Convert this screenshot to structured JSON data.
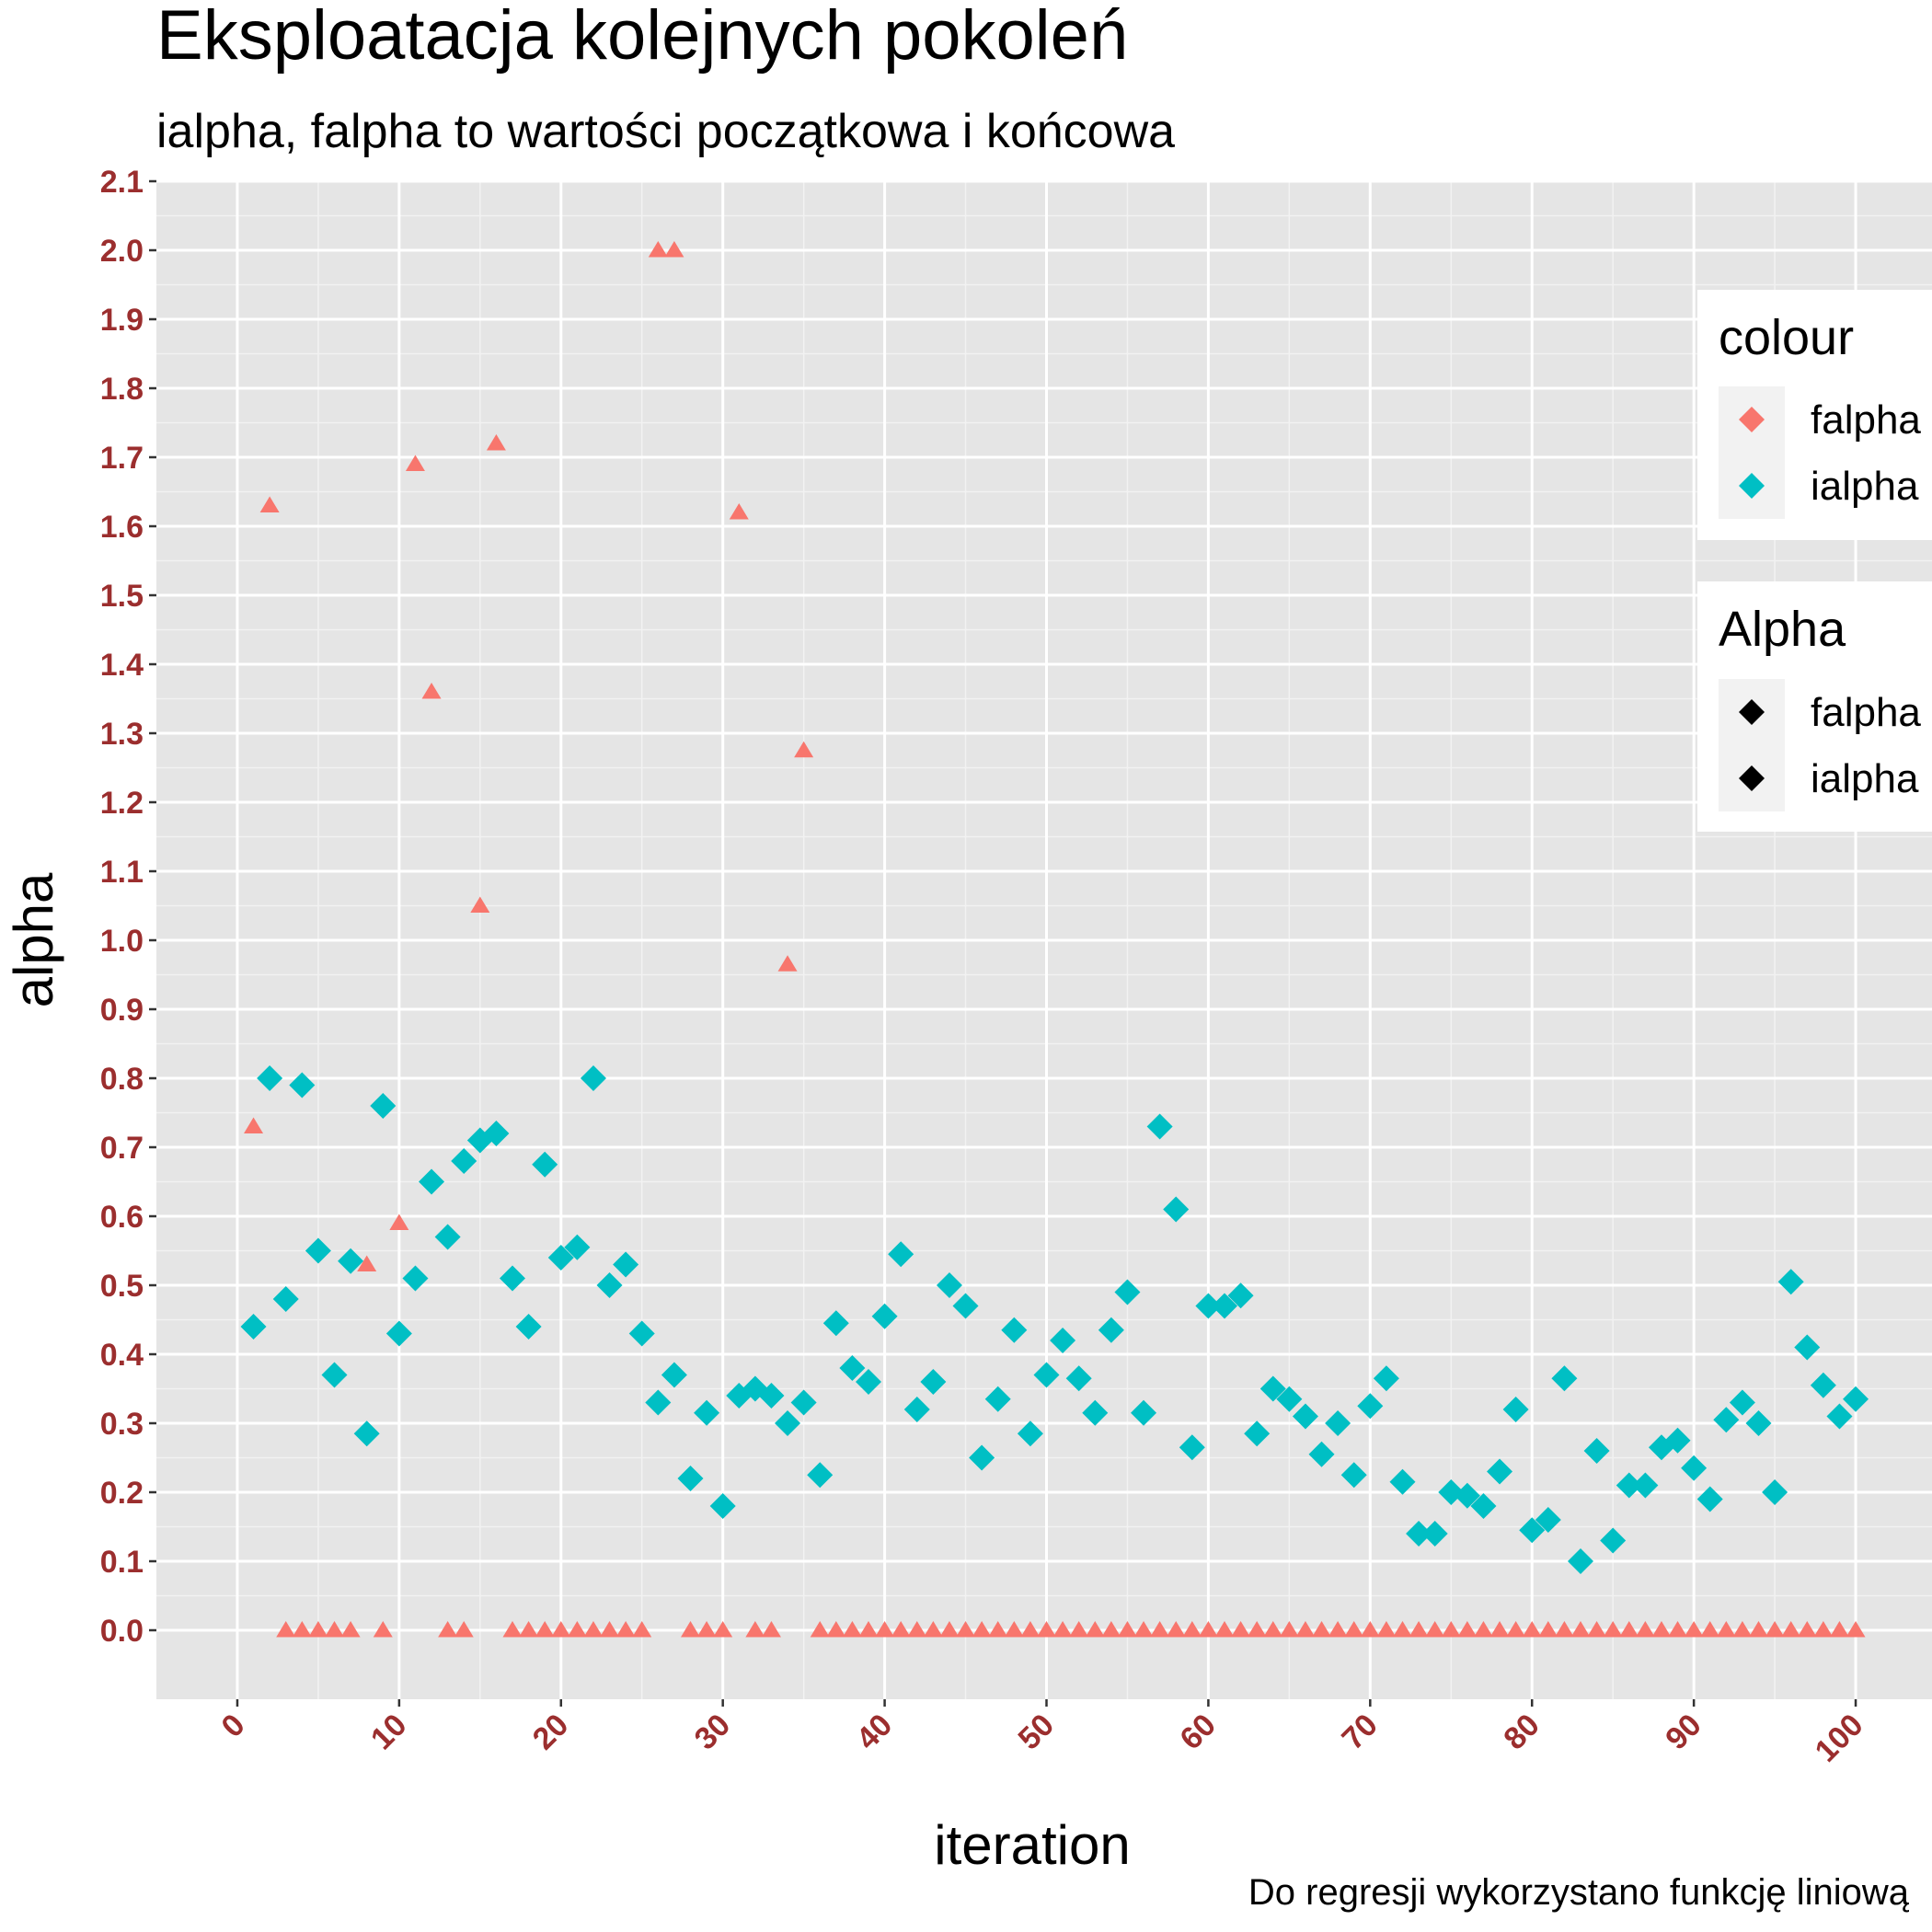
{
  "chart_data": {
    "type": "scatter",
    "title": "Eksploatacja kolejnych pokoleń",
    "subtitle": "ialpha, falpha to wartości początkowa i końcowa",
    "caption": "Do regresji wykorzystano funkcję liniową",
    "xlabel": "iteration",
    "ylabel": "alpha",
    "xlim": [
      -5,
      105
    ],
    "ylim": [
      -0.1,
      2.1
    ],
    "x_ticks": [
      0,
      10,
      20,
      30,
      40,
      50,
      60,
      70,
      80,
      90,
      100
    ],
    "x_tick_labels": [
      "0",
      "10",
      "20",
      "30",
      "40",
      "50",
      "60",
      "70",
      "80",
      "90",
      "100"
    ],
    "y_ticks": [
      0,
      0.1,
      0.2,
      0.3,
      0.4,
      0.5,
      0.6,
      0.7,
      0.8,
      0.9,
      1.0,
      1.1,
      1.2,
      1.3,
      1.4,
      1.5,
      1.6,
      1.7,
      1.8,
      1.9,
      2.0,
      2.1
    ],
    "y_tick_labels": [
      "0.0",
      "0.1",
      "0.2",
      "0.3",
      "0.4",
      "0.5",
      "0.6",
      "0.7",
      "0.8",
      "0.9",
      "1.0",
      "1.1",
      "1.2",
      "1.3",
      "1.4",
      "1.5",
      "1.6",
      "1.7",
      "1.8",
      "1.9",
      "2.0",
      "2.1"
    ],
    "grid": true,
    "legend_position": "right",
    "legends": [
      {
        "title": "colour",
        "entries": [
          {
            "label": "falpha",
            "color": "#F8766D"
          },
          {
            "label": "ialpha",
            "color": "#00BFC4"
          }
        ]
      },
      {
        "title": "Alpha",
        "entries": [
          {
            "label": "falpha",
            "color": "#000000"
          },
          {
            "label": "ialpha",
            "color": "#000000"
          }
        ]
      }
    ],
    "series": [
      {
        "name": "ialpha",
        "color": "#00BFC4",
        "marker": "diamond",
        "x": [
          1,
          2,
          3,
          4,
          5,
          6,
          7,
          8,
          9,
          10,
          11,
          12,
          13,
          14,
          15,
          16,
          17,
          18,
          19,
          20,
          21,
          22,
          23,
          24,
          25,
          26,
          27,
          28,
          29,
          30,
          31,
          32,
          33,
          34,
          35,
          36,
          37,
          38,
          39,
          40,
          41,
          42,
          43,
          44,
          45,
          46,
          47,
          48,
          49,
          50,
          51,
          52,
          53,
          54,
          55,
          56,
          57,
          58,
          59,
          60,
          61,
          62,
          63,
          64,
          65,
          66,
          67,
          68,
          69,
          70,
          71,
          72,
          73,
          74,
          75,
          76,
          77,
          78,
          79,
          80,
          81,
          82,
          83,
          84,
          85,
          86,
          87,
          88,
          89,
          90,
          91,
          92,
          93,
          94,
          95,
          96,
          97,
          98,
          99,
          100
        ],
        "y": [
          0.44,
          0.8,
          0.48,
          0.79,
          0.55,
          0.37,
          0.535,
          0.285,
          0.76,
          0.43,
          0.51,
          0.65,
          0.57,
          0.68,
          0.71,
          0.72,
          0.51,
          0.44,
          0.675,
          0.54,
          0.555,
          0.8,
          0.5,
          0.53,
          0.43,
          0.33,
          0.37,
          0.22,
          0.315,
          0.18,
          0.34,
          0.35,
          0.34,
          0.3,
          0.33,
          0.225,
          0.445,
          0.38,
          0.36,
          0.455,
          0.545,
          0.32,
          0.36,
          0.5,
          0.47,
          0.25,
          0.335,
          0.435,
          0.285,
          0.37,
          0.42,
          0.365,
          0.315,
          0.435,
          0.49,
          0.315,
          0.73,
          0.61,
          0.265,
          0.47,
          0.47,
          0.485,
          0.285,
          0.35,
          0.335,
          0.31,
          0.255,
          0.3,
          0.225,
          0.325,
          0.365,
          0.215,
          0.14,
          0.14,
          0.2,
          0.195,
          0.18,
          0.23,
          0.32,
          0.145,
          0.16,
          0.365,
          0.1,
          0.26,
          0.13,
          0.21,
          0.21,
          0.265,
          0.275,
          0.235,
          0.19,
          0.305,
          0.33,
          0.3,
          0.2,
          0.505,
          0.41,
          0.355,
          0.31,
          0.335
        ]
      },
      {
        "name": "falpha",
        "color": "#F8766D",
        "marker": "triangle",
        "x": [
          1,
          2,
          3,
          4,
          5,
          6,
          7,
          8,
          9,
          10,
          11,
          12,
          13,
          14,
          15,
          16,
          17,
          18,
          19,
          20,
          21,
          22,
          23,
          24,
          25,
          26,
          27,
          28,
          29,
          30,
          31,
          32,
          33,
          34,
          35,
          36,
          37,
          38,
          39,
          40,
          41,
          42,
          43,
          44,
          45,
          46,
          47,
          48,
          49,
          50,
          51,
          52,
          53,
          54,
          55,
          56,
          57,
          58,
          59,
          60,
          61,
          62,
          63,
          64,
          65,
          66,
          67,
          68,
          69,
          70,
          71,
          72,
          73,
          74,
          75,
          76,
          77,
          78,
          79,
          80,
          81,
          82,
          83,
          84,
          85,
          86,
          87,
          88,
          89,
          90,
          91,
          92,
          93,
          94,
          95,
          96,
          97,
          98,
          99,
          100
        ],
        "y": [
          0.73,
          1.63,
          0,
          0,
          0,
          0,
          0,
          0.53,
          0,
          0.59,
          1.69,
          1.36,
          0,
          0,
          1.05,
          1.72,
          0,
          0,
          0,
          0,
          0,
          0,
          0,
          0,
          0,
          2.0,
          2.0,
          0,
          0,
          0,
          1.62,
          0,
          0,
          0.965,
          1.275,
          0,
          0,
          0,
          0,
          0,
          0,
          0,
          0,
          0,
          0,
          0,
          0,
          0,
          0,
          0,
          0,
          0,
          0,
          0,
          0,
          0,
          0,
          0,
          0,
          0,
          0,
          0,
          0,
          0,
          0,
          0,
          0,
          0,
          0,
          0,
          0,
          0,
          0,
          0,
          0,
          0,
          0,
          0,
          0,
          0,
          0,
          0,
          0,
          0,
          0,
          0,
          0,
          0,
          0,
          0,
          0,
          0,
          0,
          0,
          0,
          0,
          0,
          0,
          0,
          0
        ]
      }
    ]
  }
}
